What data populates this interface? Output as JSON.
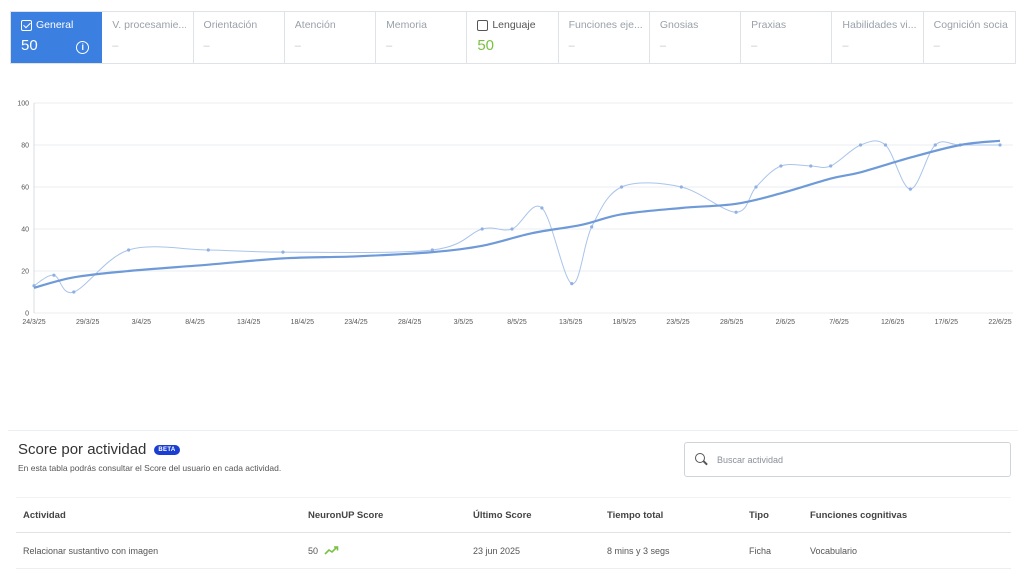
{
  "tabs": [
    {
      "label": "General",
      "score": "50",
      "active": true,
      "checked": true
    },
    {
      "label": "V. procesamie...",
      "score": "–"
    },
    {
      "label": "Orientación",
      "score": "–"
    },
    {
      "label": "Atención",
      "score": "–"
    },
    {
      "label": "Memoria",
      "score": "–"
    },
    {
      "label": "Lenguaje",
      "score": "50",
      "checkbox": true
    },
    {
      "label": "Funciones eje...",
      "score": "–"
    },
    {
      "label": "Gnosias",
      "score": "–"
    },
    {
      "label": "Praxias",
      "score": "–"
    },
    {
      "label": "Habilidades vi...",
      "score": "–"
    },
    {
      "label": "Cognición social",
      "score": "–"
    }
  ],
  "colors": {
    "accent": "#3b7fe0",
    "lenguaje_score": "#7ac143",
    "beta": "#1a3ed1",
    "trend_line": "#6f9ad8",
    "raw_line": "#a9c4ec"
  },
  "chart_data": {
    "type": "line",
    "ylim": [
      0,
      100
    ],
    "yticks": [
      "0",
      "20",
      "40",
      "60",
      "80",
      "100"
    ],
    "xticks": [
      "24/3/25",
      "29/3/25",
      "3/4/25",
      "8/4/25",
      "13/4/25",
      "18/4/25",
      "23/4/25",
      "28/4/25",
      "3/5/25",
      "8/5/25",
      "13/5/25",
      "18/5/25",
      "23/5/25",
      "28/5/25",
      "2/6/25",
      "7/6/25",
      "12/6/25",
      "17/6/25",
      "22/6/25"
    ],
    "series": [
      {
        "kind": "raw",
        "points": [
          [
            0,
            13
          ],
          [
            4,
            18
          ],
          [
            8,
            10
          ],
          [
            19,
            30
          ],
          [
            35,
            30
          ],
          [
            50,
            29
          ],
          [
            80,
            30
          ],
          [
            90,
            40
          ],
          [
            96,
            40
          ],
          [
            102,
            50
          ],
          [
            108,
            14
          ],
          [
            112,
            41
          ],
          [
            118,
            60
          ],
          [
            130,
            60
          ],
          [
            141,
            48
          ],
          [
            145,
            60
          ],
          [
            150,
            70
          ],
          [
            156,
            70
          ],
          [
            160,
            70
          ],
          [
            166,
            80
          ],
          [
            171,
            80
          ],
          [
            176,
            59
          ],
          [
            181,
            80
          ],
          [
            186,
            80
          ],
          [
            194,
            80
          ]
        ]
      },
      {
        "kind": "trend",
        "points": [
          [
            0,
            12
          ],
          [
            8,
            17
          ],
          [
            19,
            20
          ],
          [
            35,
            23
          ],
          [
            50,
            26
          ],
          [
            65,
            27
          ],
          [
            80,
            29
          ],
          [
            90,
            32
          ],
          [
            100,
            38
          ],
          [
            110,
            42
          ],
          [
            118,
            47
          ],
          [
            130,
            50
          ],
          [
            141,
            52
          ],
          [
            150,
            57
          ],
          [
            160,
            64
          ],
          [
            166,
            67
          ],
          [
            176,
            74
          ],
          [
            186,
            80
          ],
          [
            194,
            82
          ]
        ]
      }
    ]
  },
  "score_section": {
    "title": "Score por actividad",
    "beta": "BETA",
    "description": "En esta tabla podrás consultar el Score del usuario en cada actividad.",
    "search_placeholder": "Buscar actividad",
    "headers": [
      "Actividad",
      "NeuronUP Score",
      "Último Score",
      "Tiempo total",
      "Tipo",
      "Funciones cognitivas"
    ],
    "rows": [
      {
        "actividad": "Relacionar sustantivo con imagen",
        "score": "50",
        "ultimo": "23 jun 2025",
        "tiempo": "8 mins y 3 segs",
        "tipo": "Ficha",
        "funciones": "Vocabulario"
      }
    ]
  }
}
